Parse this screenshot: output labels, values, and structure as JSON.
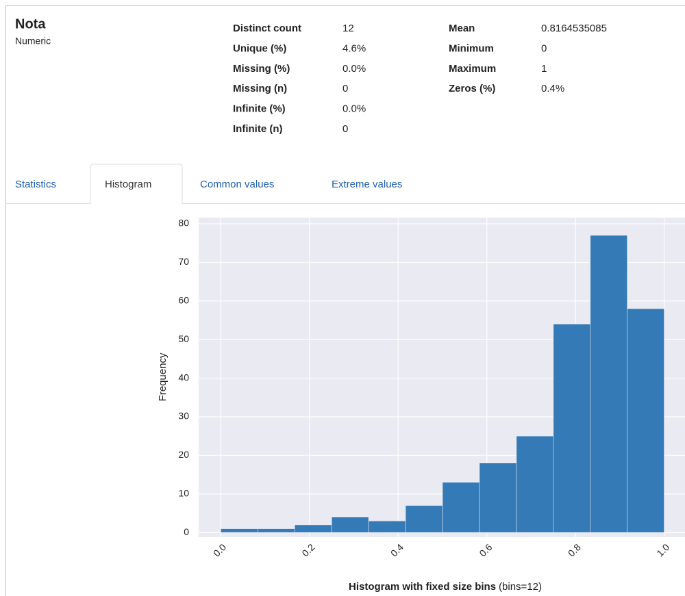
{
  "header": {
    "title": "Nota",
    "subtitle": "Numeric"
  },
  "stats_left": [
    {
      "label": "Distinct count",
      "value": "12"
    },
    {
      "label": "Unique (%)",
      "value": "4.6%"
    },
    {
      "label": "Missing (%)",
      "value": "0.0%"
    },
    {
      "label": "Missing (n)",
      "value": "0"
    },
    {
      "label": "Infinite (%)",
      "value": "0.0%"
    },
    {
      "label": "Infinite (n)",
      "value": "0"
    }
  ],
  "stats_right": [
    {
      "label": "Mean",
      "value": "0.8164535085"
    },
    {
      "label": "Minimum",
      "value": "0"
    },
    {
      "label": "Maximum",
      "value": "1"
    },
    {
      "label": "Zeros (%)",
      "value": "0.4%"
    }
  ],
  "tabs": [
    "Statistics",
    "Histogram",
    "Common values",
    "Extreme values"
  ],
  "active_tab": 1,
  "chart_data": {
    "type": "histogram",
    "bins": [
      0,
      0.0833333333,
      0.1666666667,
      0.25,
      0.3333333333,
      0.4166666667,
      0.5,
      0.5833333333,
      0.6666666667,
      0.75,
      0.8333333333,
      0.9166666667,
      1
    ],
    "values": [
      1,
      1,
      2,
      4,
      3,
      7,
      13,
      18,
      25,
      54,
      77,
      58
    ],
    "color": "#337ab7",
    "xlim": [
      -0.05,
      1.05
    ],
    "xticks": [
      {
        "value": 0,
        "label": "0.0"
      },
      0.2,
      0.4,
      0.6,
      0.8,
      {
        "value": 1,
        "label": "1.0"
      }
    ],
    "ylim": [
      -1.2,
      81.6
    ],
    "yticks": [
      0,
      10,
      20,
      30,
      40,
      50,
      60,
      70,
      80
    ],
    "ylabel": "Frequency",
    "xlabel": "Histogram with fixed size bins",
    "xlabel_note": "(bins=12)",
    "grid": true
  }
}
